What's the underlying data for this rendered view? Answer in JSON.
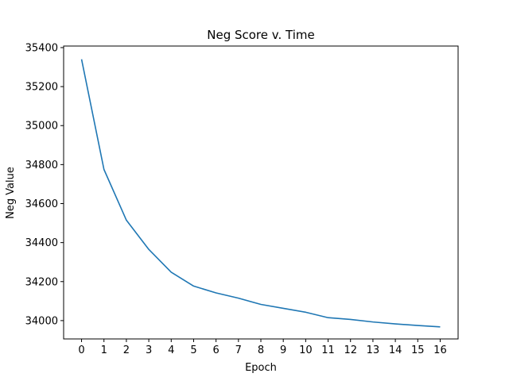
{
  "chart_data": {
    "type": "line",
    "title": "Neg Score v. Time",
    "xlabel": "Epoch",
    "ylabel": "Neg Value",
    "x": [
      0,
      1,
      2,
      3,
      4,
      5,
      6,
      7,
      8,
      9,
      10,
      11,
      12,
      13,
      14,
      15,
      16
    ],
    "series": [
      {
        "values": [
          35340,
          34775,
          34515,
          34365,
          34248,
          34177,
          34142,
          34115,
          34083,
          34063,
          34043,
          34015,
          34006,
          33993,
          33983,
          33975,
          33968
        ],
        "color": "#1f77b4"
      }
    ],
    "xticks": [
      "0",
      "1",
      "2",
      "3",
      "4",
      "5",
      "6",
      "7",
      "8",
      "9",
      "10",
      "11",
      "12",
      "13",
      "14",
      "15",
      "16"
    ],
    "yticks": [
      "34000",
      "34200",
      "34400",
      "34600",
      "34800",
      "35000",
      "35200",
      "35400"
    ],
    "xlim": [
      -0.8,
      16.8
    ],
    "ylim": [
      33906,
      35408
    ],
    "grid": false,
    "legend": "none"
  }
}
